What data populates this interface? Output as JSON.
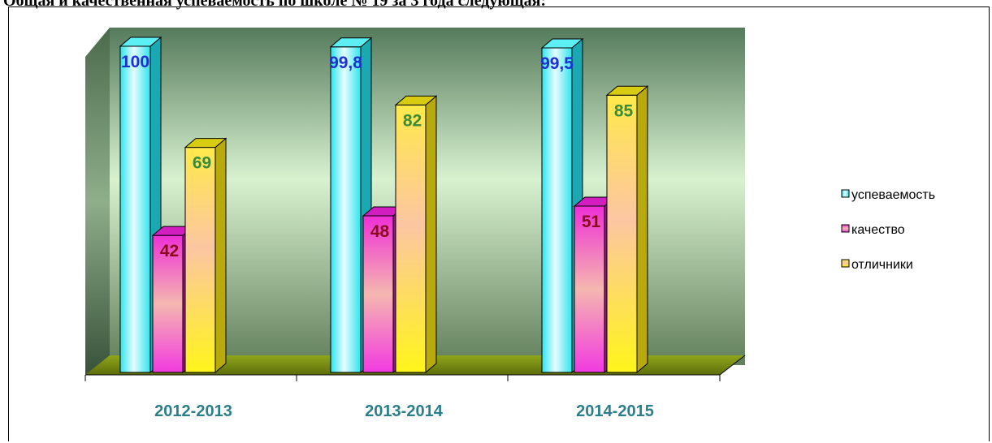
{
  "page": {
    "heading": "Общая и качественная успеваемость по школе № 19 за 3 года следующая:"
  },
  "chart_data": {
    "type": "bar",
    "categories": [
      "2012-2013",
      "2013-2014",
      "2014-2015"
    ],
    "ylim": [
      0,
      100
    ],
    "series": [
      {
        "name": "успеваемость",
        "values": [
          100,
          99.8,
          99.5
        ],
        "labels": [
          "100",
          "99,8",
          "99,5"
        ],
        "color": "#33e6ee",
        "label_color": "#1f2fd0"
      },
      {
        "name": "качество",
        "values": [
          42,
          48,
          51
        ],
        "labels": [
          "42",
          "48",
          "51"
        ],
        "color": "#ee33cc",
        "label_color": "#8a0a1e"
      },
      {
        "name": "отличники",
        "values": [
          69,
          82,
          85
        ],
        "labels": [
          "69",
          "82",
          "85"
        ],
        "color": "#f5e51a",
        "label_color": "#3a8a3a"
      }
    ],
    "legend_position": "right",
    "grid": false,
    "style": "3d-column"
  }
}
